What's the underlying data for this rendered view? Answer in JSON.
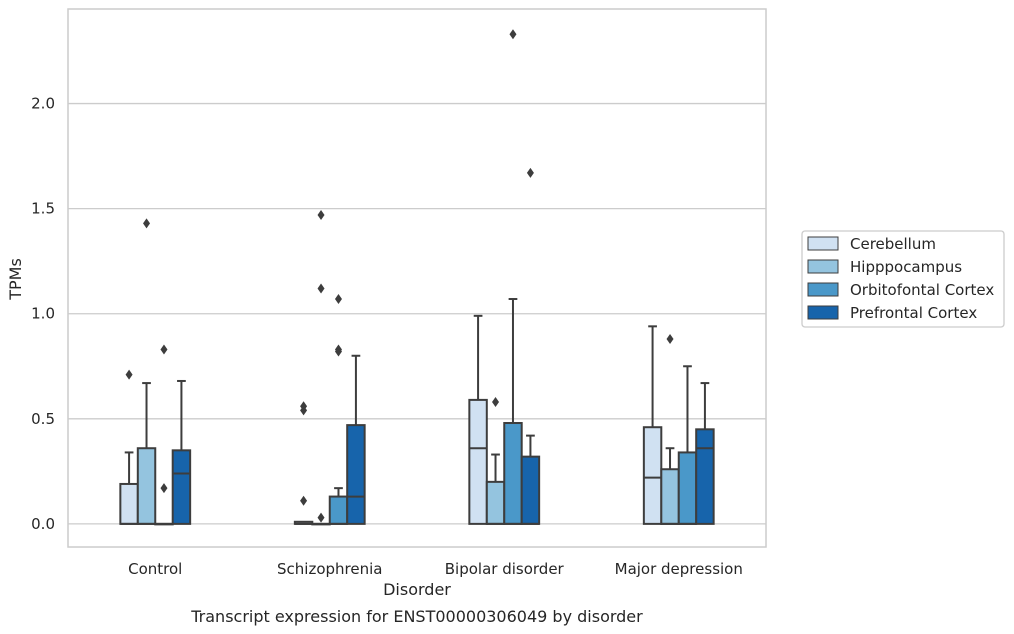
{
  "chart_data": {
    "type": "boxplot",
    "caption": "Transcript expression for ENST00000306049 by disorder",
    "xlabel": "Disorder",
    "ylabel": "TPMs",
    "ylim": [
      -0.11,
      2.45
    ],
    "yticks": [
      0.0,
      0.5,
      1.0,
      1.5,
      2.0
    ],
    "ytick_labels": [
      "0.0",
      "0.5",
      "1.0",
      "1.5",
      "2.0"
    ],
    "grid": true,
    "legend_position": "outside-right",
    "categories": [
      "Control",
      "Schizophrenia",
      "Bipolar disorder",
      "Major depression"
    ],
    "series": [
      {
        "name": "Cerebellum",
        "color": "#d0e1f2",
        "boxes": [
          {
            "q1": 0.0,
            "median": 0.0,
            "q3": 0.19,
            "whisker_low": 0.0,
            "whisker_high": 0.34,
            "outliers": [
              0.71
            ]
          },
          {
            "q1": 0.0,
            "median": 0.0,
            "q3": 0.01,
            "whisker_low": 0.0,
            "whisker_high": 0.01,
            "outliers": [
              0.11,
              0.54,
              0.56
            ]
          },
          {
            "q1": 0.0,
            "median": 0.36,
            "q3": 0.59,
            "whisker_low": 0.0,
            "whisker_high": 0.99,
            "outliers": []
          },
          {
            "q1": 0.0,
            "median": 0.22,
            "q3": 0.46,
            "whisker_low": 0.0,
            "whisker_high": 0.94,
            "outliers": []
          }
        ]
      },
      {
        "name": "Hipppocampus",
        "color": "#94c4df",
        "boxes": [
          {
            "q1": 0.0,
            "median": 0.0,
            "q3": 0.36,
            "whisker_low": 0.0,
            "whisker_high": 0.67,
            "outliers": [
              1.43
            ]
          },
          {
            "q1": 0.0,
            "median": 0.0,
            "q3": 0.0,
            "whisker_low": 0.0,
            "whisker_high": 0.0,
            "outliers": [
              0.03,
              1.12,
              1.47
            ]
          },
          {
            "q1": 0.0,
            "median": 0.0,
            "q3": 0.2,
            "whisker_low": 0.0,
            "whisker_high": 0.33,
            "outliers": [
              0.58
            ]
          },
          {
            "q1": 0.0,
            "median": 0.0,
            "q3": 0.26,
            "whisker_low": 0.0,
            "whisker_high": 0.36,
            "outliers": [
              0.88
            ]
          }
        ]
      },
      {
        "name": "Orbitofontal Cortex",
        "color": "#4a98c9",
        "boxes": [
          {
            "q1": 0.0,
            "median": 0.0,
            "q3": 0.0,
            "whisker_low": 0.0,
            "whisker_high": 0.0,
            "outliers": [
              0.17,
              0.83
            ]
          },
          {
            "q1": 0.0,
            "median": 0.0,
            "q3": 0.13,
            "whisker_low": 0.0,
            "whisker_high": 0.17,
            "outliers": [
              0.82,
              0.83,
              1.07
            ]
          },
          {
            "q1": 0.0,
            "median": 0.0,
            "q3": 0.48,
            "whisker_low": 0.0,
            "whisker_high": 1.07,
            "outliers": [
              2.33
            ]
          },
          {
            "q1": 0.0,
            "median": 0.0,
            "q3": 0.34,
            "whisker_low": 0.0,
            "whisker_high": 0.75,
            "outliers": []
          }
        ]
      },
      {
        "name": "Prefrontal Cortex",
        "color": "#1764ab",
        "boxes": [
          {
            "q1": 0.0,
            "median": 0.24,
            "q3": 0.35,
            "whisker_low": 0.0,
            "whisker_high": 0.68,
            "outliers": []
          },
          {
            "q1": 0.0,
            "median": 0.13,
            "q3": 0.47,
            "whisker_low": 0.0,
            "whisker_high": 0.8,
            "outliers": []
          },
          {
            "q1": 0.0,
            "median": 0.0,
            "q3": 0.32,
            "whisker_low": 0.0,
            "whisker_high": 0.42,
            "outliers": [
              1.67
            ]
          },
          {
            "q1": 0.0,
            "median": 0.36,
            "q3": 0.45,
            "whisker_low": 0.0,
            "whisker_high": 0.67,
            "outliers": []
          }
        ]
      }
    ]
  }
}
